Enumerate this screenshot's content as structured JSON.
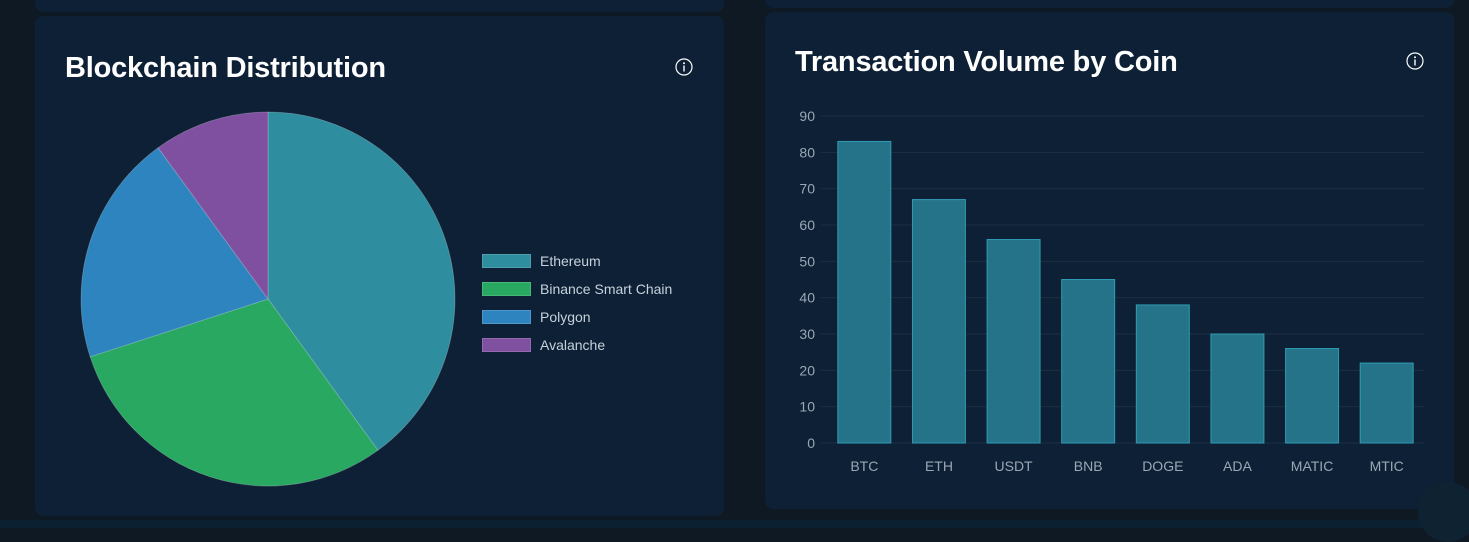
{
  "pie_card": {
    "title": "Blockchain Distribution",
    "info_icon": "info-icon"
  },
  "bar_card": {
    "title": "Transaction Volume by Coin",
    "info_icon": "info-icon"
  },
  "colors": {
    "background": "#0f1923",
    "card": "#0d2035",
    "gridline": "#1a2e44",
    "bar_fill": "#257389",
    "bar_stroke": "#2e9bb3",
    "axis_text": "#9aa7b5"
  },
  "chart_data": [
    {
      "type": "pie",
      "title": "Blockchain Distribution",
      "legend_position": "right",
      "labels": [
        "Ethereum",
        "Binance Smart Chain",
        "Polygon",
        "Avalanche"
      ],
      "values": [
        40,
        30,
        20,
        10
      ],
      "colors": [
        "#2e8d9e",
        "#29a862",
        "#2e84be",
        "#8050a0"
      ]
    },
    {
      "type": "bar",
      "title": "Transaction Volume by Coin",
      "categories": [
        "BTC",
        "ETH",
        "USDT",
        "BNB",
        "DOGE",
        "ADA",
        "MATIC",
        "MTIC"
      ],
      "values": [
        83,
        67,
        56,
        45,
        38,
        30,
        26,
        22
      ],
      "ylim": [
        0,
        90
      ],
      "yticks": [
        0,
        10,
        20,
        30,
        40,
        50,
        60,
        70,
        80,
        90
      ],
      "grid": true,
      "xlabel": "",
      "ylabel": ""
    }
  ]
}
